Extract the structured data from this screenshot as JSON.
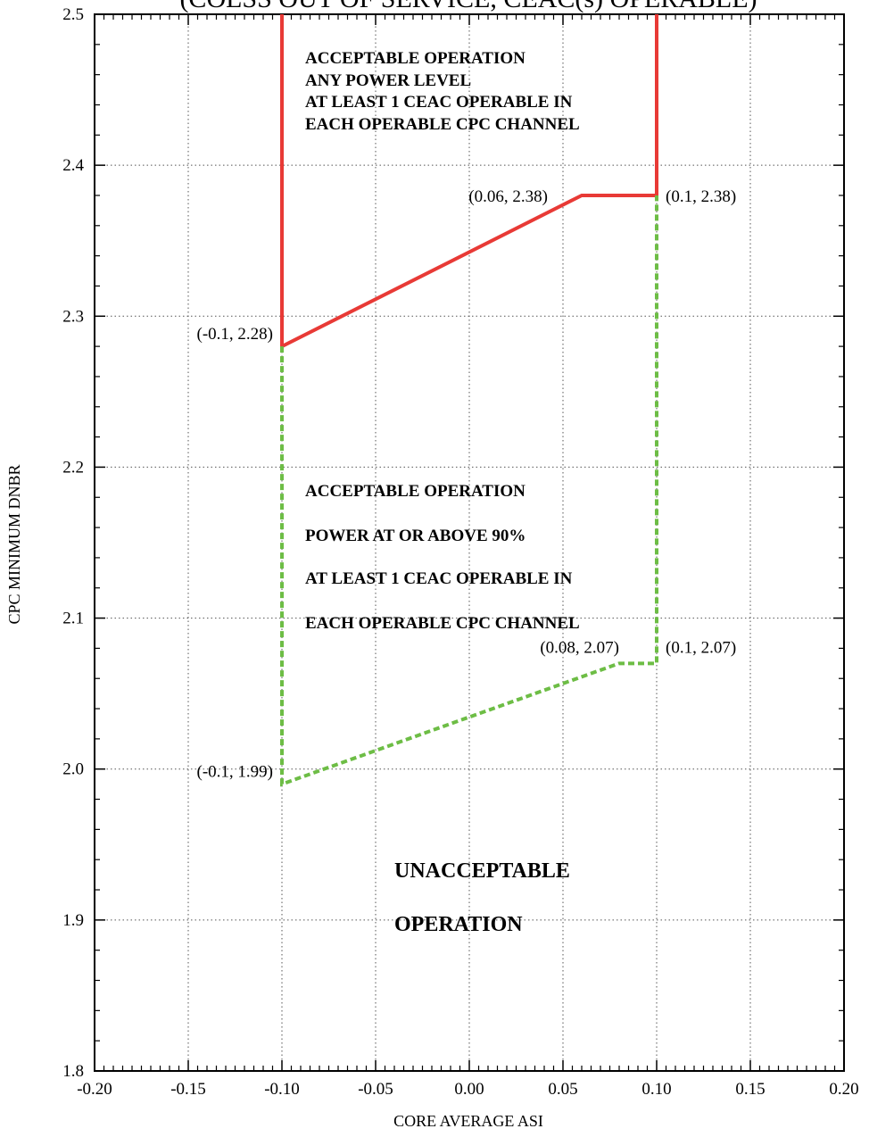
{
  "title": "(COLSS OUT OF SERVICE, CEAC(s) OPERABLE)",
  "chart_data": {
    "type": "line",
    "xlabel": "CORE AVERAGE ASI",
    "ylabel": "CPC MINIMUM DNBR",
    "xlim": [
      -0.2,
      0.2
    ],
    "ylim": [
      1.8,
      2.5
    ],
    "x_ticks": [
      "-0.20",
      "-0.15",
      "-0.10",
      "-0.05",
      "0.00",
      "0.05",
      "0.10",
      "0.15",
      "0.20"
    ],
    "y_ticks": [
      "1.8",
      "1.9",
      "2.0",
      "2.1",
      "2.2",
      "2.3",
      "2.4",
      "2.5"
    ],
    "grid": true,
    "series": [
      {
        "style": "solid",
        "color": "#e83a36",
        "points": [
          [
            -0.1,
            2.5
          ],
          [
            -0.1,
            2.28
          ],
          [
            0.06,
            2.38
          ],
          [
            0.1,
            2.38
          ],
          [
            0.1,
            2.5
          ]
        ]
      },
      {
        "style": "dashed",
        "color": "#6dbd45",
        "points": [
          [
            -0.1,
            2.28
          ],
          [
            -0.1,
            1.99
          ],
          [
            0.08,
            2.07
          ],
          [
            0.1,
            2.07
          ],
          [
            0.1,
            2.38
          ]
        ]
      }
    ],
    "point_labels": [
      {
        "text": "(0.06, 2.38)",
        "x": 0.06,
        "y": 2.38
      },
      {
        "text": "(0.1, 2.38)",
        "x": 0.1,
        "y": 2.38
      },
      {
        "text": "(-0.1, 2.28)",
        "x": -0.1,
        "y": 2.28
      },
      {
        "text": "(0.08, 2.07)",
        "x": 0.08,
        "y": 2.07
      },
      {
        "text": "(0.1, 2.07)",
        "x": 0.1,
        "y": 2.07
      },
      {
        "text": "(-0.1, 1.99)",
        "x": -0.1,
        "y": 1.99
      }
    ],
    "regions": [
      {
        "name": "upper",
        "lines": [
          "ACCEPTABLE OPERATION",
          "ANY POWER LEVEL",
          "AT LEAST 1 CEAC OPERABLE IN",
          "EACH OPERABLE CPC CHANNEL"
        ]
      },
      {
        "name": "middle",
        "lines": [
          "ACCEPTABLE OPERATION",
          "POWER AT OR ABOVE 90%",
          "AT LEAST 1 CEAC OPERABLE IN",
          "EACH OPERABLE CPC CHANNEL"
        ]
      },
      {
        "name": "lower",
        "lines": [
          "UNACCEPTABLE",
          "OPERATION"
        ]
      }
    ]
  }
}
